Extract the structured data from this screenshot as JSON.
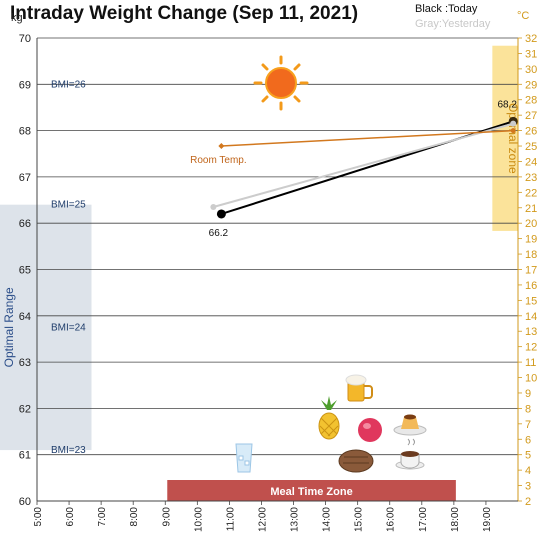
{
  "chart_data": {
    "type": "line",
    "title": "Intraday Weight Change (Sep 11, 2021)",
    "legend": {
      "today": "Black :Today",
      "yesterday": "Gray:Yesterday"
    },
    "left_unit": "kg",
    "right_unit": "°C",
    "ylim": [
      60,
      70
    ],
    "y_ticks": [
      60,
      61,
      62,
      63,
      64,
      65,
      66,
      67,
      68,
      69,
      70
    ],
    "y2lim": [
      2,
      32
    ],
    "y2_ticks": [
      2,
      3,
      4,
      5,
      6,
      7,
      8,
      9,
      10,
      11,
      12,
      13,
      14,
      15,
      16,
      17,
      18,
      19,
      20,
      21,
      22,
      23,
      24,
      25,
      26,
      27,
      28,
      29,
      30,
      31,
      32
    ],
    "xlim": [
      5,
      20
    ],
    "x_ticks": [
      "5:00",
      "6:00",
      "7:00",
      "8:00",
      "9:00",
      "10:00",
      "11:00",
      "12:00",
      "13:00",
      "14:00",
      "15:00",
      "16:00",
      "17:00",
      "18:00",
      "19:00"
    ],
    "x_tick_values": [
      5,
      6,
      7,
      8,
      9,
      10,
      11,
      12,
      13,
      14,
      15,
      16,
      17,
      18,
      19
    ],
    "series": [
      {
        "name": "Today",
        "color": "#000000",
        "points": [
          {
            "x": 10.75,
            "y": 66.2,
            "label": "66.2"
          },
          {
            "x": 19.85,
            "y": 68.2,
            "label": "68.2"
          }
        ]
      },
      {
        "name": "Yesterday",
        "color": "#cccccc",
        "points": [
          {
            "x": 10.5,
            "y": 66.35
          },
          {
            "x": 19.85,
            "y": 68.15
          }
        ]
      },
      {
        "name": "Room Temp.",
        "color": "#d2781e",
        "axis": "right",
        "points": [
          {
            "x": 10.75,
            "y": 25.0
          },
          {
            "x": 19.85,
            "y": 26.0
          }
        ]
      }
    ],
    "bmi_lines": [
      {
        "label": "BMI=26",
        "y": 69.0
      },
      {
        "label": "BMI=25",
        "y": 66.4
      },
      {
        "label": "BMI=24",
        "y": 63.75
      },
      {
        "label": "BMI=23",
        "y": 61.1
      }
    ],
    "optimal_range": {
      "label": "Optimal Range",
      "ymin": 61.1,
      "ymax": 66.4,
      "xmin": 5,
      "xmax": 6.7
    },
    "optimal_zone": {
      "label": "Optimal zone",
      "y2min": 19.5,
      "y2max": 31.5,
      "xmin": 19.2,
      "xmax": 20
    },
    "meal_time_zone": {
      "label": "Meal Time Zone",
      "xmin": 9,
      "xmax": 18
    },
    "room_temp_label": "Room Temp.",
    "grid": true,
    "colors": {
      "today": "#000000",
      "yesterday": "#cccccc",
      "room_temp": "#d2781e",
      "meal_zone": "#c0504d",
      "optimal_range": "#dde3ea",
      "optimal_zone": "#fbe39a"
    }
  }
}
